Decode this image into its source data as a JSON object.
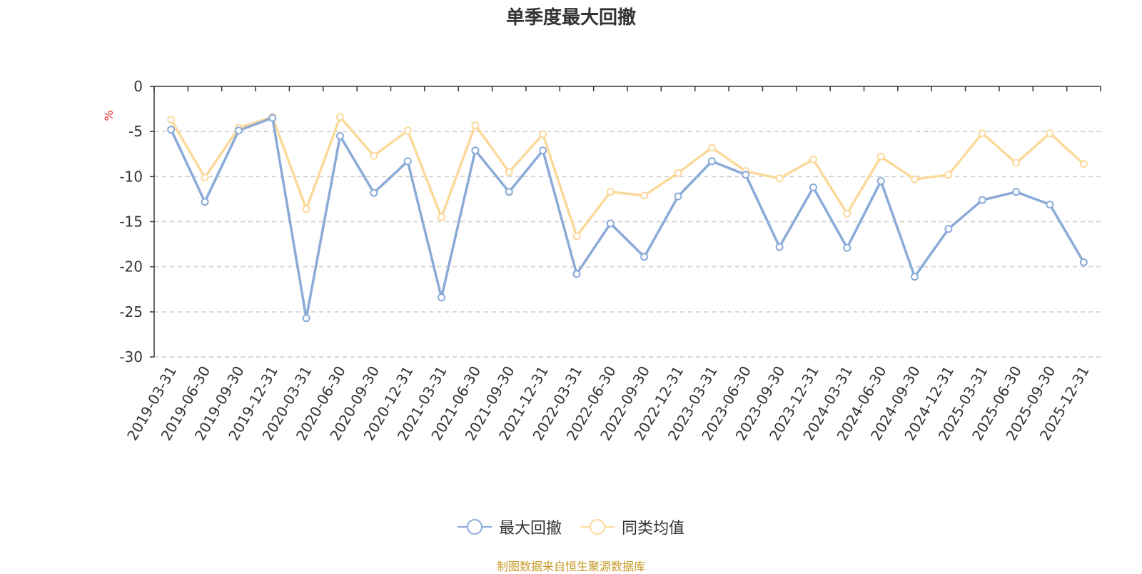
{
  "chart_data": {
    "type": "line",
    "title": "单季度最大回撤",
    "ylabel": "%",
    "xlabel": "",
    "ylim": [
      -30,
      0
    ],
    "yticks": [
      0,
      -5,
      -10,
      -15,
      -20,
      -25,
      -30
    ],
    "grid": true,
    "legend_position": "bottom-center",
    "categories": [
      "2019-03-31",
      "2019-06-30",
      "2019-09-30",
      "2019-12-31",
      "2020-03-31",
      "2020-06-30",
      "2020-09-30",
      "2020-12-31",
      "2021-03-31",
      "2021-06-30",
      "2021-09-30",
      "2021-12-31",
      "2022-03-31",
      "2022-06-30",
      "2022-09-30",
      "2022-12-31",
      "2023-03-31",
      "2023-06-30",
      "2023-09-30",
      "2023-12-31",
      "2024-03-31",
      "2024-06-30",
      "2024-09-30",
      "2024-12-31",
      "2025-03-31",
      "2025-06-30",
      "2025-09-30",
      "2025-12-31"
    ],
    "series": [
      {
        "name": "最大回撤",
        "color": "#8aaad8",
        "values": [
          -4.8,
          -12.8,
          -4.9,
          -3.5,
          -25.7,
          -5.5,
          -11.8,
          -8.3,
          -23.4,
          -7.1,
          -11.7,
          -7.1,
          -20.8,
          -15.2,
          -18.9,
          -12.2,
          -8.3,
          -9.8,
          -17.8,
          -11.2,
          -17.9,
          -10.5,
          -21.1,
          -15.8,
          -12.6,
          -11.7,
          -13.1,
          -19.5
        ]
      },
      {
        "name": "同类均值",
        "color": "#fbd99b",
        "values": [
          -3.7,
          -10.1,
          -4.6,
          -3.4,
          -13.6,
          -3.4,
          -7.7,
          -4.9,
          -14.5,
          -4.3,
          -9.5,
          -5.3,
          -16.6,
          -11.7,
          -12.1,
          -9.6,
          -6.8,
          -9.4,
          -10.2,
          -8.1,
          -14.1,
          -7.8,
          -10.3,
          -9.8,
          -5.2,
          -8.5,
          -5.2,
          -8.6
        ]
      }
    ]
  },
  "source": "制图数据来自恒生聚源数据库"
}
